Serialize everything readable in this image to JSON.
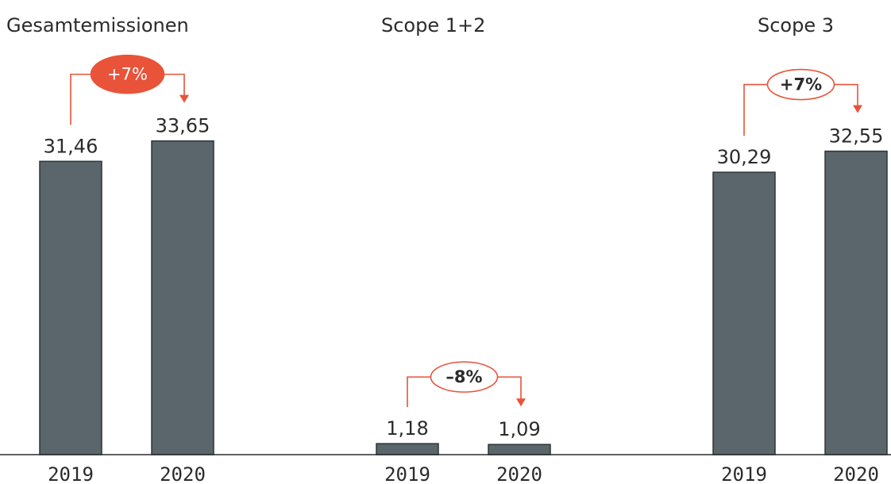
{
  "chart_data": {
    "type": "bar",
    "categories": [
      "2019",
      "2020"
    ],
    "groups": [
      {
        "title": "Gesamtemissionen",
        "values": [
          31.46,
          33.65
        ],
        "value_labels": [
          "31,46",
          "33,65"
        ],
        "change_label": "+7%",
        "change_style": "filled"
      },
      {
        "title": "Scope 1+2",
        "values": [
          1.18,
          1.09
        ],
        "value_labels": [
          "1,18",
          "1,09"
        ],
        "change_label": "–8%",
        "change_style": "outline"
      },
      {
        "title": "Scope 3",
        "values": [
          30.29,
          32.55
        ],
        "value_labels": [
          "30,29",
          "32,55"
        ],
        "change_label": "+7%",
        "change_style": "outline"
      }
    ],
    "ylim": [
      0,
      40
    ],
    "grid": false,
    "colors": {
      "bar": "#5a666b",
      "accent": "#e8533a",
      "text": "#2b2b2b",
      "axis": "#2b2b2b"
    }
  }
}
